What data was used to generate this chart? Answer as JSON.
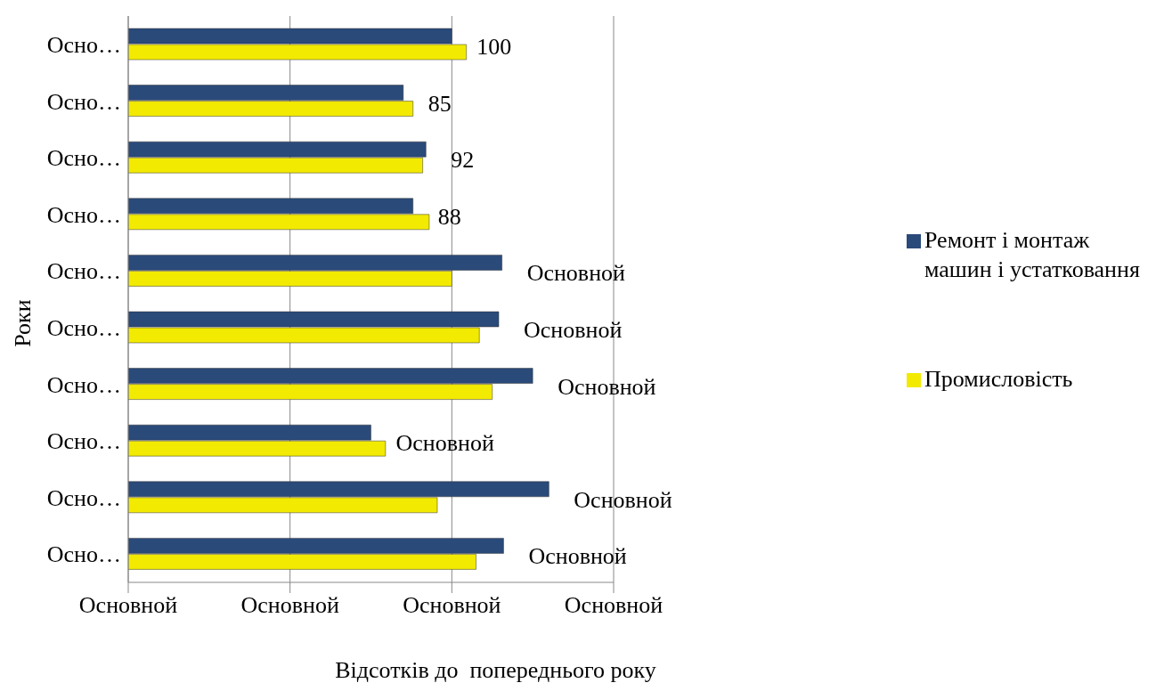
{
  "chart_data": {
    "type": "bar",
    "orientation": "horizontal",
    "xlabel": "Відсотків до  попереднього року",
    "ylabel": "Роки",
    "categories": [
      "Осно…",
      "Осно…",
      "Осно…",
      "Осно…",
      "Осно…",
      "Осно…",
      "Осно…",
      "Осно…",
      "Осно…",
      "Осно…"
    ],
    "series": [
      {
        "name": "Ремонт і монтаж машин і устатковання",
        "color": "#2a4a7a",
        "values": [
          100,
          85,
          92,
          88,
          115.5,
          114.5,
          125,
          75,
          130,
          116
        ],
        "value_labels": [
          "100",
          "85",
          "92",
          "88",
          "Основной",
          "Основной",
          "Основной",
          "Основной",
          "Основной",
          "Основной"
        ]
      },
      {
        "name": "Промисловість",
        "color": "#f2ea00",
        "values": [
          104.5,
          88,
          91,
          93,
          100,
          108.5,
          112.5,
          79.5,
          95.5,
          107.5
        ]
      }
    ],
    "xlim": [
      0,
      150
    ],
    "xticks": [
      {
        "value": 0,
        "label": null
      },
      {
        "value": 50,
        "label": null
      },
      {
        "value": 100,
        "label": null
      },
      {
        "value": 150,
        "label": null
      }
    ],
    "annotations": [
      "Основной",
      "Основной",
      "Основной",
      "Основной"
    ],
    "grid": "x",
    "legend": "right"
  }
}
